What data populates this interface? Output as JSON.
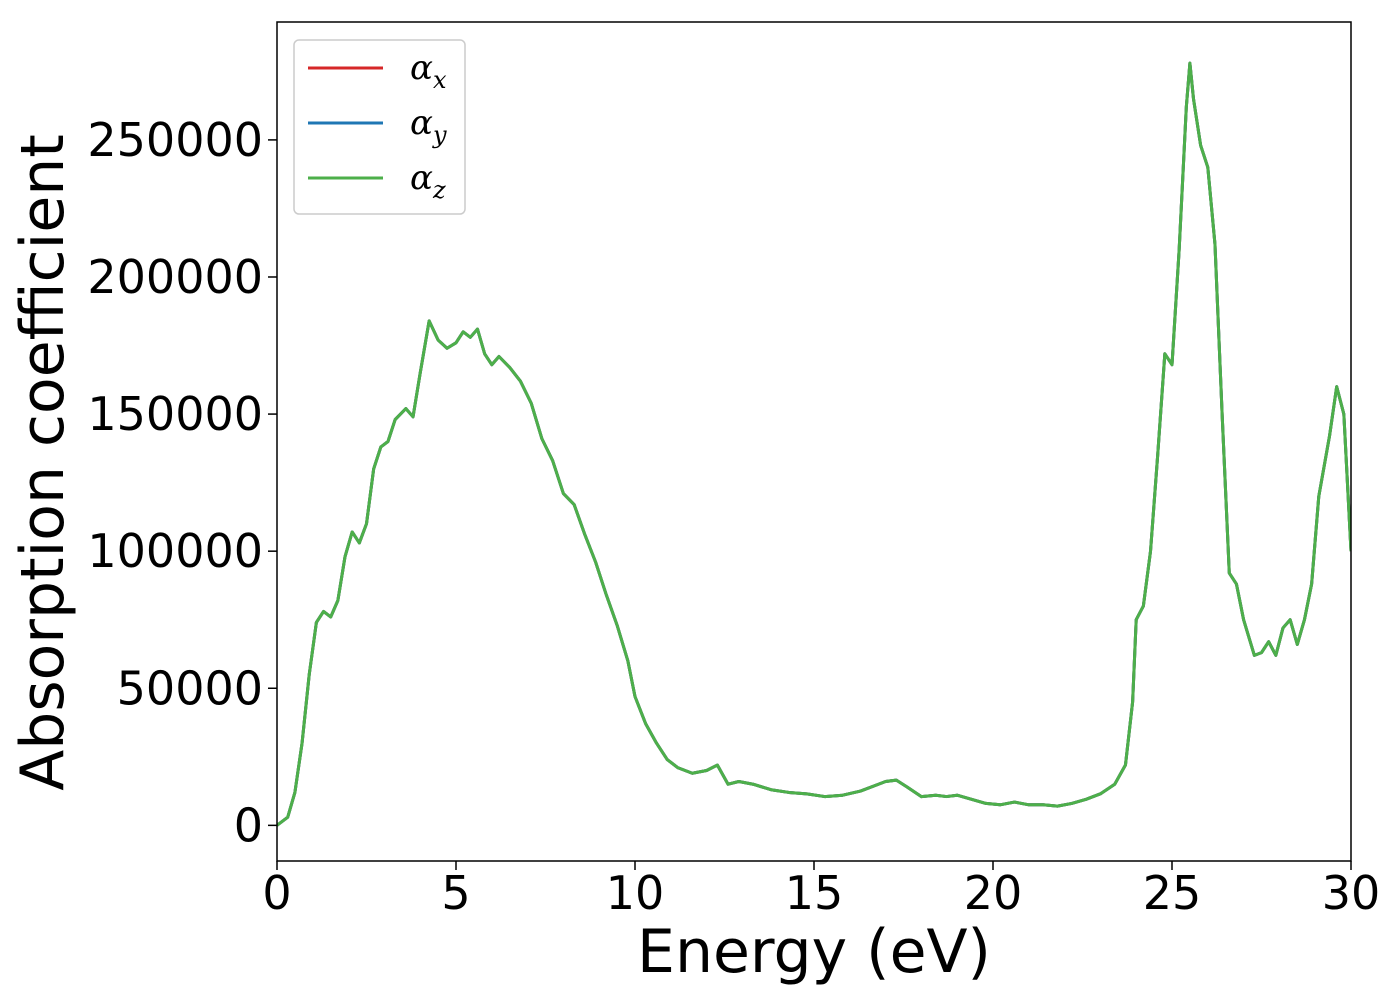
{
  "chart_data": {
    "type": "line",
    "title": "",
    "xlabel": "Energy (eV)",
    "ylabel": "Absorption coefficient",
    "xlim": [
      0,
      30
    ],
    "ylim": [
      -13000,
      293000
    ],
    "x_ticks": [
      0,
      5,
      10,
      15,
      20,
      25,
      30
    ],
    "y_ticks": [
      0,
      50000,
      100000,
      150000,
      200000,
      250000
    ],
    "x_tick_labels": [
      "0",
      "5",
      "10",
      "15",
      "20",
      "25",
      "30"
    ],
    "y_tick_labels": [
      "0",
      "50000",
      "100000",
      "150000",
      "200000",
      "250000"
    ],
    "grid": false,
    "legend_position": "top-left",
    "series": [
      {
        "name": "α",
        "subscript": "x",
        "color": "#d62728",
        "key": "alpha_x"
      },
      {
        "name": "α",
        "subscript": "y",
        "color": "#1f77b4",
        "key": "alpha_y"
      },
      {
        "name": "α",
        "subscript": "z",
        "color": "#4daf4a",
        "key": "alpha_z"
      }
    ],
    "note_values": "All three series coincide; shared values below",
    "x": [
      0,
      0.3,
      0.5,
      0.7,
      0.9,
      1.1,
      1.3,
      1.5,
      1.7,
      1.9,
      2.1,
      2.3,
      2.5,
      2.7,
      2.9,
      3.1,
      3.3,
      3.6,
      3.8,
      4.0,
      4.25,
      4.5,
      4.75,
      5.0,
      5.2,
      5.4,
      5.6,
      5.8,
      6.0,
      6.2,
      6.5,
      6.8,
      7.1,
      7.4,
      7.7,
      8.0,
      8.3,
      8.6,
      8.9,
      9.2,
      9.5,
      9.8,
      10.0,
      10.3,
      10.6,
      10.9,
      11.2,
      11.6,
      12.0,
      12.3,
      12.6,
      12.9,
      13.3,
      13.8,
      14.3,
      14.8,
      15.3,
      15.8,
      16.3,
      16.8,
      17.0,
      17.3,
      17.6,
      18.0,
      18.4,
      18.7,
      19.0,
      19.4,
      19.8,
      20.2,
      20.6,
      21.0,
      21.4,
      21.8,
      22.2,
      22.6,
      23.0,
      23.4,
      23.7,
      23.9,
      24.0,
      24.2,
      24.4,
      24.6,
      24.8,
      25.0,
      25.2,
      25.4,
      25.5,
      25.6,
      25.8,
      26.0,
      26.2,
      26.4,
      26.6,
      26.8,
      27.0,
      27.3,
      27.5,
      27.7,
      27.9,
      28.1,
      28.3,
      28.5,
      28.7,
      28.9,
      29.1,
      29.4,
      29.6,
      29.8,
      30.0
    ],
    "y": [
      0,
      3000,
      12000,
      30000,
      55000,
      74000,
      78000,
      76000,
      82000,
      98000,
      107000,
      103000,
      110000,
      130000,
      138000,
      140000,
      148000,
      152000,
      149000,
      165000,
      184000,
      177000,
      174000,
      176000,
      180000,
      178000,
      181000,
      172000,
      168000,
      171000,
      167000,
      162000,
      154000,
      141000,
      133000,
      121000,
      117000,
      106000,
      96000,
      84000,
      73000,
      60000,
      47000,
      37000,
      30000,
      24000,
      21000,
      19000,
      20000,
      22000,
      15000,
      16000,
      15000,
      13000,
      12000,
      11500,
      10500,
      11000,
      12500,
      15000,
      16000,
      16500,
      14000,
      10500,
      11000,
      10500,
      11000,
      9500,
      8000,
      7500,
      8500,
      7500,
      7500,
      7000,
      8000,
      9500,
      11500,
      15000,
      22000,
      45000,
      75000,
      80000,
      100000,
      135000,
      172000,
      168000,
      210000,
      262000,
      278000,
      265000,
      248000,
      240000,
      212000,
      150000,
      92000,
      88000,
      75000,
      62000,
      63000,
      67000,
      62000,
      72000,
      75000,
      66000,
      75000,
      88000,
      120000,
      142000,
      160000,
      150000,
      100000
    ]
  }
}
